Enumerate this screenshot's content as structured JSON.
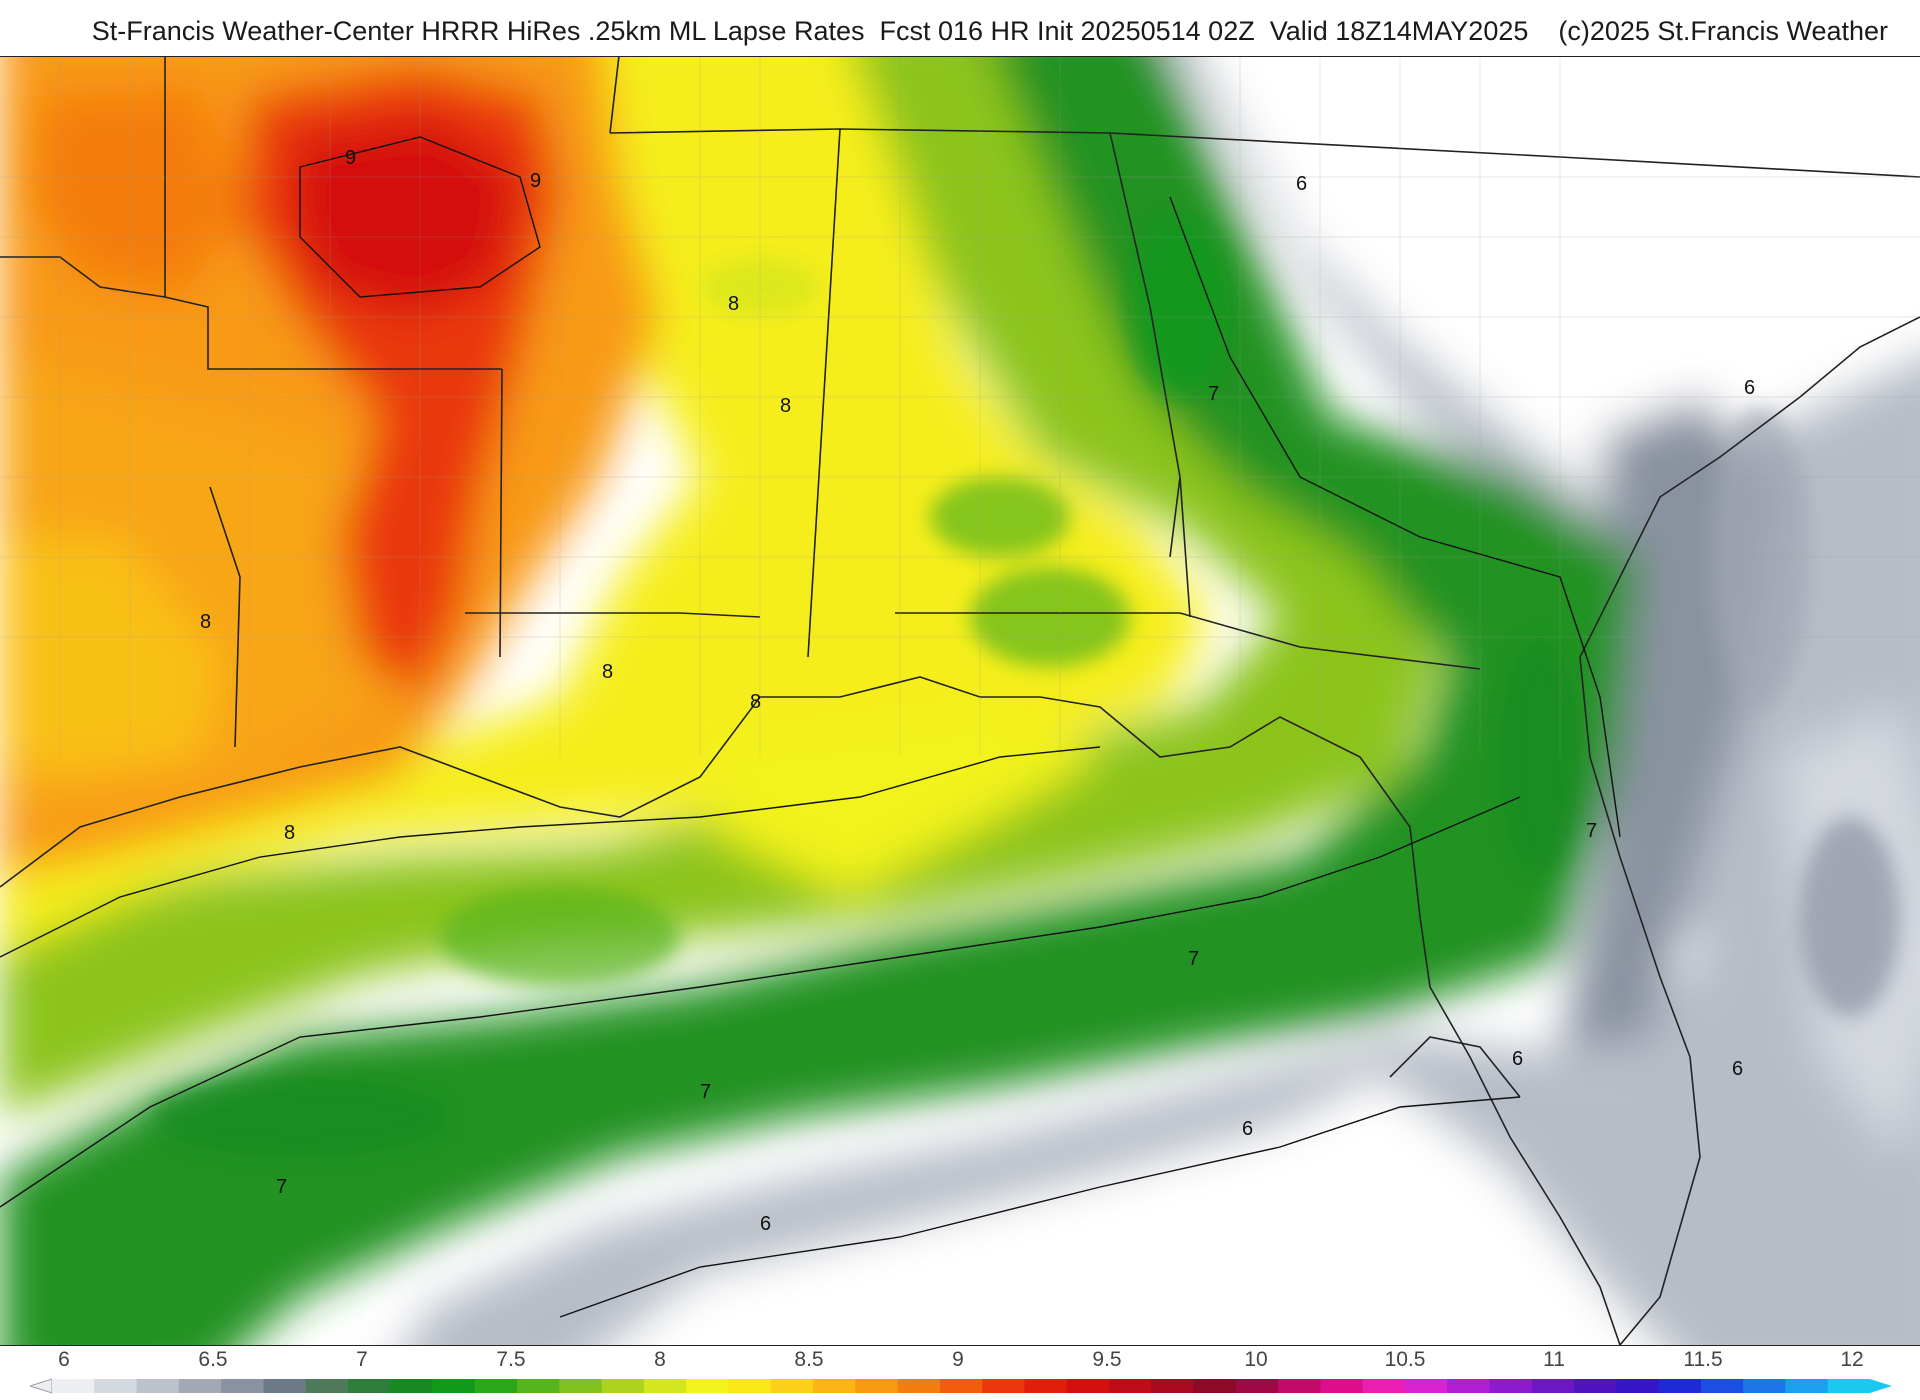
{
  "header": {
    "title": "St-Francis Weather-Center HRRR HiRes .25km ML Lapse Rates  Fcst 016 HR Init 20250514 02Z  Valid 18Z14MAY2025    (c)2025 St.Francis Weather"
  },
  "map": {
    "contour_labels": [
      "9",
      "9",
      "8",
      "8",
      "8",
      "8",
      "8",
      "8",
      "7",
      "7",
      "7",
      "7",
      "7",
      "6",
      "6",
      "6",
      "6",
      "6",
      "6"
    ]
  },
  "colorbar": {
    "ticks": [
      "6",
      "6.5",
      "7",
      "7.5",
      "8",
      "8.5",
      "9",
      "9.5",
      "10",
      "10.5",
      "11",
      "11.5",
      "12"
    ],
    "colors": [
      "#eceef2",
      "#d4d8df",
      "#bcc1cb",
      "#a2a8b4",
      "#8a92a0",
      "#6c7b86",
      "#4f7a5a",
      "#2f7d3a",
      "#178a23",
      "#119a1a",
      "#2aa81a",
      "#56b41c",
      "#83c21d",
      "#aed31f",
      "#d4e61f",
      "#f2f21c",
      "#fbe61a",
      "#fcd018",
      "#fbb515",
      "#f89a12",
      "#f47d10",
      "#ef5d0d",
      "#ea380a",
      "#e21d0a",
      "#d4100e",
      "#c00c16",
      "#a8091f",
      "#8e0828",
      "#a00845",
      "#c20b68",
      "#dc0e8c",
      "#ea1fb2",
      "#d923d0",
      "#b11fd4",
      "#8e1ad0",
      "#6c16c8",
      "#4f14bf",
      "#3416c4",
      "#1e2ad6",
      "#1a4fe2",
      "#1a76ea",
      "#1aa0ee",
      "#1ac8f0"
    ]
  }
}
